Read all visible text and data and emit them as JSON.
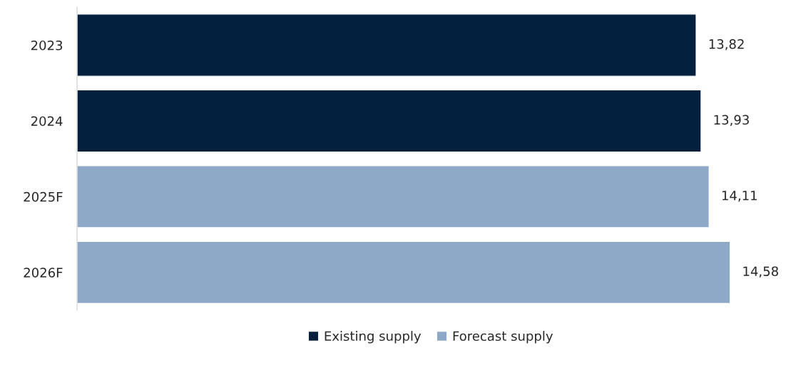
{
  "chart_data": {
    "type": "bar",
    "orientation": "horizontal",
    "categories": [
      "2023",
      "2024",
      "2025F",
      "2026F"
    ],
    "series": [
      {
        "name": "Existing supply",
        "color": "#03203f",
        "values": [
          13.82,
          13.93,
          null,
          null
        ],
        "value_labels": [
          "13,82",
          "13,93",
          null,
          null
        ]
      },
      {
        "name": "Forecast supply",
        "color": "#8ea9c7",
        "values": [
          null,
          null,
          14.11,
          14.58
        ],
        "value_labels": [
          null,
          null,
          "14,11",
          "14,58"
        ]
      }
    ],
    "legend": "bottom",
    "grid": false,
    "tick_labels": "y"
  }
}
